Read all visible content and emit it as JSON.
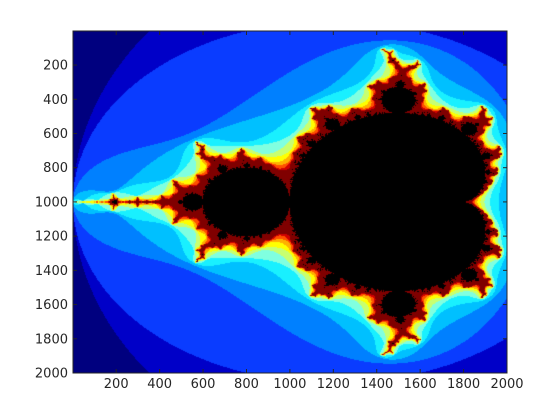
{
  "chart_data": {
    "type": "heatmap",
    "title": "",
    "xlabel": "",
    "ylabel": "",
    "xlim": [
      1,
      2000
    ],
    "ylim": [
      2000,
      1
    ],
    "y_axis_direction": "reverse",
    "xticks": [
      200,
      400,
      600,
      800,
      1000,
      1200,
      1400,
      1600,
      1800,
      2000
    ],
    "yticks": [
      200,
      400,
      600,
      800,
      1000,
      1200,
      1400,
      1600,
      1800,
      2000
    ],
    "colormap": "jet",
    "set_color": "#000000",
    "grid": false,
    "legend": "none",
    "content": "Mandelbrot set escape-iteration map",
    "complex_bounds": {
      "re": [
        -2.0,
        0.5
      ],
      "im": [
        -1.25,
        1.25
      ]
    },
    "color_levels": [
      {
        "level": 1,
        "color": "#00007f"
      },
      {
        "level": 2,
        "color": "#0000c8"
      },
      {
        "level": 3,
        "color": "#0a3cff"
      },
      {
        "level": 4,
        "color": "#0080ff"
      },
      {
        "level": 5,
        "color": "#00c0ff"
      },
      {
        "level": 6,
        "color": "#19f0ff"
      },
      {
        "level": 7,
        "color": "#80ffe0"
      },
      {
        "level": 8,
        "color": "#c8ff70"
      },
      {
        "level": 9,
        "color": "#ffff00"
      },
      {
        "level": 10,
        "color": "#ffb000"
      },
      {
        "level": 11,
        "color": "#ff5000"
      },
      {
        "level": 12,
        "color": "#d00000"
      },
      {
        "level": 13,
        "color": "#800000"
      }
    ]
  }
}
